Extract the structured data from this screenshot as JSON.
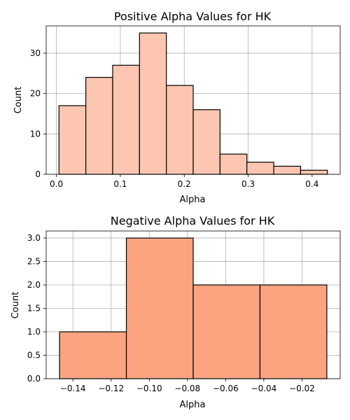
{
  "chart_data": [
    {
      "type": "bar",
      "subtype": "histogram",
      "title": "Positive Alpha Values for HK",
      "xlabel": "Alpha",
      "ylabel": "Count",
      "bin_edges": [
        0.004,
        0.046,
        0.088,
        0.13,
        0.172,
        0.214,
        0.256,
        0.298,
        0.34,
        0.382,
        0.424
      ],
      "values": [
        17,
        24,
        27,
        35,
        22,
        16,
        5,
        3,
        2,
        1
      ],
      "xlim": [
        -0.016,
        0.444
      ],
      "ylim": [
        0,
        36.75
      ],
      "xticks": [
        0.0,
        0.1,
        0.2,
        0.3,
        0.4
      ],
      "xtick_labels": [
        "0.0",
        "0.1",
        "0.2",
        "0.3",
        "0.4"
      ],
      "yticks": [
        0,
        10,
        20,
        30
      ],
      "ytick_labels": [
        "0",
        "10",
        "20",
        "30"
      ],
      "grid": true,
      "color": "#fdc6b0",
      "edge_color": "#000000"
    },
    {
      "type": "bar",
      "subtype": "histogram",
      "title": "Negative Alpha Values for HK",
      "xlabel": "Alpha",
      "ylabel": "Count",
      "bin_edges": [
        -0.147,
        -0.112,
        -0.077,
        -0.042,
        -0.007
      ],
      "values": [
        1,
        3,
        2,
        2
      ],
      "xlim": [
        -0.154,
        0.0
      ],
      "ylim": [
        0,
        3.15
      ],
      "xticks": [
        -0.14,
        -0.12,
        -0.1,
        -0.08,
        -0.06,
        -0.04,
        -0.02
      ],
      "xtick_labels": [
        "−0.14",
        "−0.12",
        "−0.10",
        "−0.08",
        "−0.06",
        "−0.04",
        "−0.02"
      ],
      "yticks": [
        0.0,
        0.5,
        1.0,
        1.5,
        2.0,
        2.5,
        3.0
      ],
      "ytick_labels": [
        "0.0",
        "0.5",
        "1.0",
        "1.5",
        "2.0",
        "2.5",
        "3.0"
      ],
      "grid": true,
      "color": "#fca480",
      "edge_color": "#000000"
    }
  ]
}
